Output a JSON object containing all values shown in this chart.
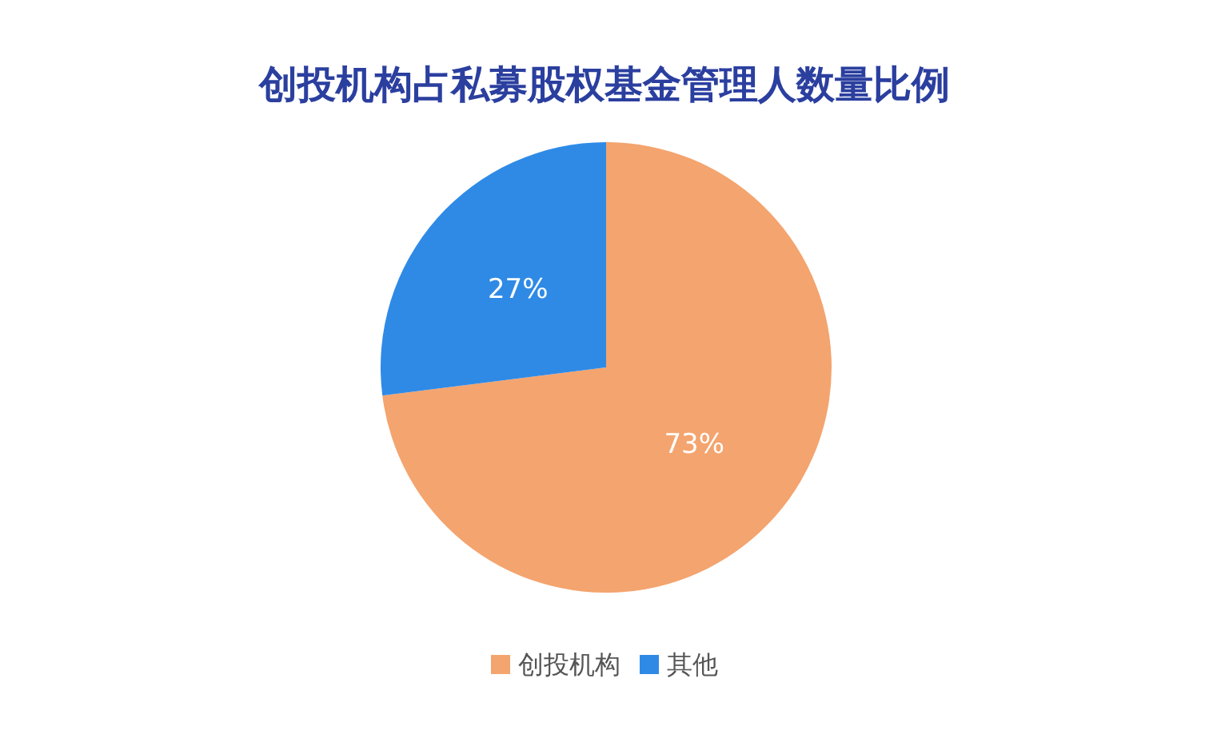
{
  "chart_data": {
    "type": "pie",
    "title": "创投机构占私募股权基金管理人数量比例",
    "categories": [
      "创投机构",
      "其他"
    ],
    "values": [
      73,
      27
    ],
    "colors": [
      "#f4a46e",
      "#2f8ae6"
    ],
    "value_labels": [
      "73%",
      "27%"
    ],
    "legend": "bottom"
  }
}
